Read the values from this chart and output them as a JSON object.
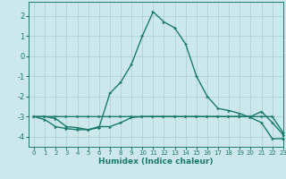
{
  "xlabel": "Humidex (Indice chaleur)",
  "xlim": [
    -0.5,
    23
  ],
  "ylim": [
    -4.5,
    2.7
  ],
  "yticks": [
    -4,
    -3,
    -2,
    -1,
    0,
    1,
    2
  ],
  "xticks": [
    0,
    1,
    2,
    3,
    4,
    5,
    6,
    7,
    8,
    9,
    10,
    11,
    12,
    13,
    14,
    15,
    16,
    17,
    18,
    19,
    20,
    21,
    22,
    23
  ],
  "bg_color": "#cce8ea",
  "grid_color": "#aacccc",
  "line_color": "#1a7a6e",
  "line1_x": [
    0,
    1,
    2,
    3,
    4,
    5,
    6,
    7,
    8,
    9,
    10,
    11,
    12,
    13,
    14,
    15,
    16,
    17,
    18,
    19,
    20,
    21,
    22,
    23
  ],
  "line1_y": [
    -3.0,
    -3.0,
    -3.1,
    -3.5,
    -3.55,
    -3.65,
    -3.55,
    -1.85,
    -1.3,
    -0.4,
    1.0,
    2.2,
    1.7,
    1.4,
    0.6,
    -1.0,
    -2.0,
    -2.6,
    -2.7,
    -2.85,
    -3.05,
    -3.3,
    -4.1,
    -4.1
  ],
  "line2_x": [
    0,
    1,
    2,
    3,
    4,
    5,
    6,
    7,
    8,
    9,
    10,
    11,
    12,
    13,
    14,
    15,
    16,
    17,
    18,
    19,
    20,
    21,
    22,
    23
  ],
  "line2_y": [
    -3.0,
    -3.15,
    -3.5,
    -3.6,
    -3.65,
    -3.65,
    -3.5,
    -3.5,
    -3.3,
    -3.05,
    -3.0,
    -3.0,
    -3.0,
    -3.0,
    -3.0,
    -3.0,
    -3.0,
    -3.0,
    -3.0,
    -3.0,
    -3.0,
    -2.75,
    -3.3,
    -3.9
  ],
  "line3_x": [
    0,
    1,
    2,
    3,
    4,
    5,
    6,
    7,
    8,
    9,
    10,
    11,
    12,
    13,
    14,
    15,
    16,
    17,
    18,
    19,
    20,
    21,
    22,
    23
  ],
  "line3_y": [
    -3.0,
    -3.0,
    -3.0,
    -3.0,
    -3.0,
    -3.0,
    -3.0,
    -3.0,
    -3.0,
    -3.0,
    -3.0,
    -3.0,
    -3.0,
    -3.0,
    -3.0,
    -3.0,
    -3.0,
    -3.0,
    -3.0,
    -3.0,
    -3.0,
    -3.0,
    -3.0,
    -3.8
  ]
}
